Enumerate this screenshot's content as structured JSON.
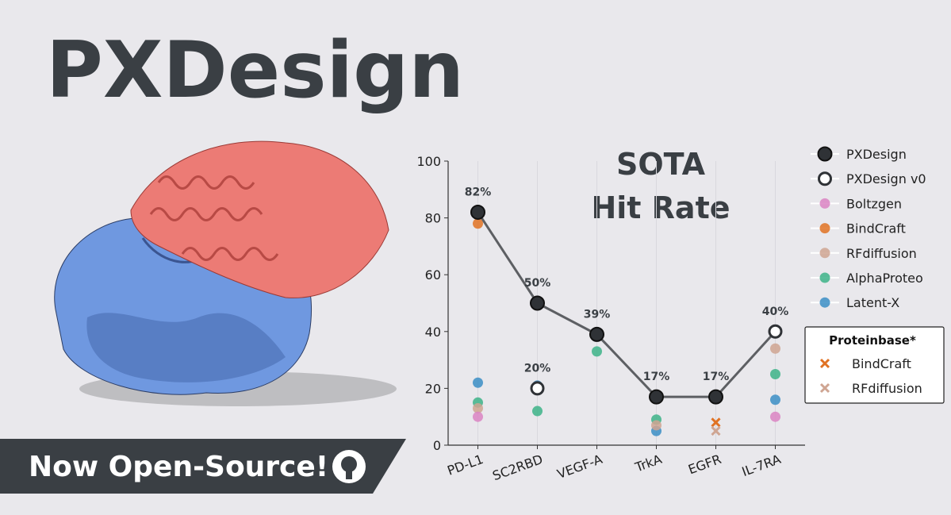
{
  "header": {
    "title": "PXDesign",
    "banner": "Now Open-Source!"
  },
  "chart_data": {
    "type": "dot",
    "title": [
      "SOTA",
      "Hit Rate"
    ],
    "categories": [
      "PD-L1",
      "SC2RBD",
      "VEGF-A",
      "TrkA",
      "EGFR",
      "IL-7RA"
    ],
    "ylim": [
      0,
      100
    ],
    "yticks": [
      0,
      20,
      40,
      60,
      80,
      100
    ],
    "grid": true,
    "series": [
      {
        "name": "PXDesign",
        "color": "#2f3236",
        "marker": "filled",
        "values": [
          82,
          50,
          39,
          17,
          17,
          null
        ],
        "value_labels": [
          "82%",
          "50%",
          "39%",
          "17%",
          "17%",
          null
        ]
      },
      {
        "name": "PXDesign v0",
        "color": "#2f3236",
        "marker": "hollow",
        "values": [
          null,
          20,
          null,
          null,
          null,
          40
        ],
        "value_labels": [
          null,
          "20%",
          null,
          null,
          null,
          "40%"
        ]
      },
      {
        "name": "Boltzgen",
        "color": "#db84c3",
        "marker": "dot",
        "values": [
          10,
          null,
          null,
          null,
          null,
          10
        ]
      },
      {
        "name": "BindCraft",
        "color": "#e07223",
        "marker": "dot",
        "values": [
          78,
          null,
          null,
          null,
          null,
          null
        ]
      },
      {
        "name": "RFdiffusion",
        "color": "#cfa592",
        "marker": "dot",
        "values": [
          13,
          null,
          null,
          7,
          null,
          34
        ]
      },
      {
        "name": "AlphaProteo",
        "color": "#3db388",
        "marker": "dot",
        "values": [
          15,
          12,
          33,
          9,
          null,
          25
        ]
      },
      {
        "name": "Latent-X",
        "color": "#3b8ec6",
        "marker": "dot",
        "values": [
          22,
          21,
          null,
          5,
          null,
          16
        ]
      }
    ],
    "proteinbase": {
      "title": "Proteinbase*",
      "series": [
        {
          "name": "BindCraft",
          "color": "#e07223",
          "marker": "x",
          "values": [
            null,
            null,
            null,
            null,
            8,
            null
          ]
        },
        {
          "name": "RFdiffusion",
          "color": "#cfa592",
          "marker": "x",
          "values": [
            null,
            null,
            null,
            null,
            5,
            null
          ]
        }
      ]
    }
  }
}
